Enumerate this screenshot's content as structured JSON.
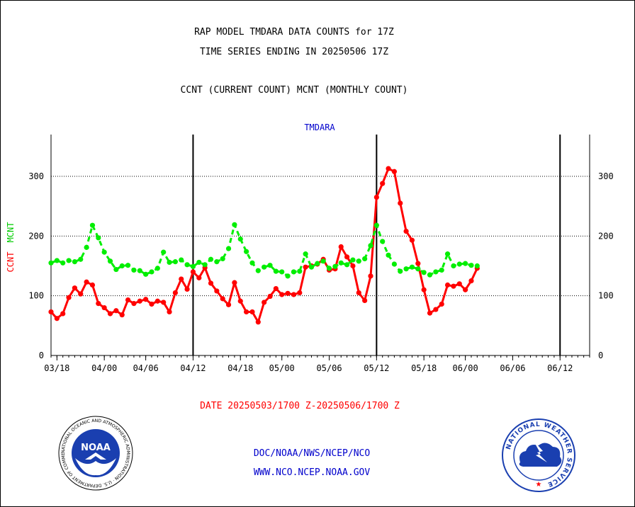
{
  "header": {
    "title_line1": "RAP MODEL TMDARA DATA COUNTS for 17Z",
    "title_line2": "TIME SERIES ENDING IN 20250506 17Z",
    "subtitle": "CCNT (CURRENT COUNT) MCNT (MONTHLY COUNT)"
  },
  "footer": {
    "date_range": "DATE 20250503/1700 Z-20250506/1700 Z",
    "credit_line1": "DOC/NOAA/NWS/NCEP/NCO",
    "credit_line2": "WWW.NCO.NCEP.NOAA.GOV"
  },
  "logos": {
    "noaa": {
      "center_text": "NOAA",
      "ring_text": "NATIONAL OCEANIC AND ATMOSPHERIC ADMINISTRATION · U.S. DEPARTMENT OF COMMERCE",
      "color": "#1a3fb0"
    },
    "nws": {
      "ring_text": "NATIONAL WEATHER SERVICE",
      "color": "#1a3fb0"
    }
  },
  "chart_data": {
    "type": "line",
    "title": "TMDARA",
    "ylabel_series1": "CCNT",
    "ylabel_series2": "MCNT",
    "ylim": [
      0,
      370
    ],
    "yticks": [
      0,
      100,
      200,
      300
    ],
    "grid": true,
    "x_count": 92,
    "x_tick_labels": [
      {
        "index": 1,
        "label": "03/18"
      },
      {
        "index": 9,
        "label": "04/00"
      },
      {
        "index": 16,
        "label": "04/06"
      },
      {
        "index": 24,
        "label": "04/12"
      },
      {
        "index": 32,
        "label": "04/18"
      },
      {
        "index": 39,
        "label": "05/00"
      },
      {
        "index": 47,
        "label": "05/06"
      },
      {
        "index": 55,
        "label": "05/12"
      },
      {
        "index": 63,
        "label": "05/18"
      },
      {
        "index": 70,
        "label": "06/00"
      },
      {
        "index": 78,
        "label": "06/06"
      },
      {
        "index": 86,
        "label": "06/12"
      }
    ],
    "day_boundaries": [
      24,
      55,
      86
    ],
    "series": [
      {
        "name": "CCNT",
        "color": "#ff0000",
        "style": "solid",
        "values": [
          73,
          62,
          70,
          97,
          113,
          103,
          123,
          118,
          87,
          80,
          70,
          75,
          68,
          93,
          87,
          91,
          94,
          86,
          91,
          89,
          73,
          105,
          128,
          111,
          140,
          130,
          147,
          121,
          108,
          95,
          85,
          122,
          91,
          73,
          73,
          56,
          89,
          99,
          112,
          102,
          104,
          102,
          105,
          148,
          150,
          153,
          161,
          143,
          145,
          182,
          165,
          150,
          105,
          92,
          133,
          265,
          288,
          313,
          308,
          255,
          208,
          193,
          154,
          110,
          71,
          77,
          86,
          118,
          116,
          120,
          110,
          125,
          146
        ]
      },
      {
        "name": "MCNT",
        "color": "#00ee00",
        "style": "dashed",
        "values": [
          155,
          159,
          155,
          159,
          157,
          161,
          181,
          218,
          197,
          173,
          158,
          144,
          150,
          151,
          143,
          142,
          136,
          140,
          146,
          173,
          156,
          157,
          160,
          152,
          149,
          156,
          152,
          161,
          157,
          162,
          179,
          219,
          195,
          174,
          155,
          142,
          148,
          151,
          141,
          140,
          133,
          140,
          141,
          170,
          148,
          154,
          158,
          146,
          149,
          155,
          152,
          160,
          158,
          162,
          184,
          218,
          191,
          168,
          153,
          141,
          145,
          148,
          145,
          139,
          135,
          140,
          143,
          170,
          150,
          153,
          154,
          151,
          150
        ]
      }
    ]
  }
}
